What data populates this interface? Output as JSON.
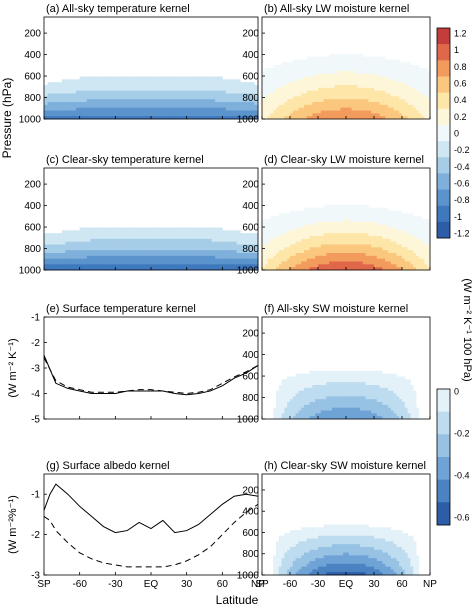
{
  "figure": {
    "y_label_left": "Pressure (hPa)",
    "x_label": "Latitude",
    "right_units": "(W m⁻² K⁻¹ 100 hPa)"
  },
  "chart_data": [
    {
      "id": "a",
      "type": "heatmap",
      "title": "(a)  All-sky temperature kernel",
      "ylim": [
        1000,
        50
      ],
      "yticks": [
        200,
        400,
        600,
        800,
        1000
      ],
      "field": "temp",
      "base": -0.9
    },
    {
      "id": "b",
      "type": "heatmap",
      "title": "(b)  All-sky LW moisture kernel",
      "ylim": [
        1000,
        50
      ],
      "yticks": [
        200,
        400,
        600,
        800,
        1000
      ],
      "field": "lw",
      "base": 1.0
    },
    {
      "id": "c",
      "type": "heatmap",
      "title": "(c)  Clear-sky temperature kernel",
      "ylim": [
        1000,
        50
      ],
      "yticks": [
        200,
        400,
        600,
        800,
        1000
      ],
      "field": "temp",
      "base": -1.0
    },
    {
      "id": "d",
      "type": "heatmap",
      "title": "(d)  Clear-sky LW moisture kernel",
      "ylim": [
        1000,
        50
      ],
      "yticks": [
        200,
        400,
        600,
        800,
        1000
      ],
      "field": "lw",
      "base": 1.2
    },
    {
      "id": "e",
      "type": "line",
      "title": "(e)  Surface temperature kernel",
      "ylabel": "(W m⁻² K⁻¹)",
      "ylim": [
        -5,
        -1
      ],
      "yticks": [
        -1,
        -2,
        -3,
        -4,
        -5
      ],
      "x": [
        -90,
        -80,
        -70,
        -60,
        -50,
        -40,
        -30,
        -20,
        -10,
        0,
        10,
        20,
        30,
        40,
        50,
        60,
        70,
        80,
        90
      ],
      "series": [
        {
          "style": "solid",
          "values": [
            -2.5,
            -3.6,
            -3.8,
            -3.9,
            -4.0,
            -4.0,
            -4.0,
            -3.9,
            -3.9,
            -3.9,
            -3.9,
            -4.0,
            -4.05,
            -4.0,
            -3.9,
            -3.7,
            -3.4,
            -3.2,
            -2.9
          ]
        },
        {
          "style": "dashed",
          "values": [
            -2.6,
            -3.5,
            -3.75,
            -3.85,
            -3.95,
            -3.95,
            -3.95,
            -3.9,
            -3.85,
            -3.85,
            -3.9,
            -3.95,
            -4.0,
            -3.95,
            -3.85,
            -3.6,
            -3.35,
            -3.15,
            -2.9
          ]
        }
      ]
    },
    {
      "id": "f",
      "type": "heatmap",
      "title": "(f)  All-sky SW moisture kernel",
      "ylim": [
        1000,
        50
      ],
      "yticks": [
        200,
        400,
        600,
        800,
        1000
      ],
      "field": "sw",
      "base": -0.4
    },
    {
      "id": "g",
      "type": "line",
      "title": "(g)  Surface albedo kernel",
      "ylabel": "(W m⁻²%⁻¹)",
      "ylim": [
        -3,
        -0.5
      ],
      "yticks": [
        -1,
        -2,
        -3
      ],
      "x": [
        -90,
        -85,
        -80,
        -70,
        -60,
        -50,
        -40,
        -30,
        -20,
        -10,
        0,
        10,
        20,
        30,
        40,
        50,
        60,
        70,
        80,
        90
      ],
      "series": [
        {
          "style": "solid",
          "values": [
            -1.4,
            -1.0,
            -0.75,
            -1.0,
            -1.3,
            -1.55,
            -1.8,
            -1.95,
            -1.9,
            -1.7,
            -1.85,
            -1.65,
            -1.95,
            -1.9,
            -1.75,
            -1.5,
            -1.25,
            -1.05,
            -1.0,
            -1.05
          ]
        },
        {
          "style": "dashed",
          "values": [
            -1.55,
            -1.65,
            -1.9,
            -2.2,
            -2.45,
            -2.6,
            -2.7,
            -2.75,
            -2.8,
            -2.8,
            -2.8,
            -2.8,
            -2.75,
            -2.65,
            -2.5,
            -2.3,
            -2.0,
            -1.7,
            -1.45,
            -1.25
          ]
        }
      ]
    },
    {
      "id": "h",
      "type": "heatmap",
      "title": "(h)  Clear-sky SW moisture kernel",
      "ylim": [
        1000,
        50
      ],
      "yticks": [
        200,
        400,
        600,
        800,
        1000
      ],
      "field": "sw",
      "base": -0.55
    }
  ],
  "x_axis": {
    "ticks": [
      -90,
      -60,
      -30,
      0,
      30,
      60,
      90
    ],
    "labels": [
      "SP",
      "-60",
      "-30",
      "EQ",
      "30",
      "60",
      "NP"
    ],
    "xlim": [
      -90,
      90
    ]
  },
  "colorbar_lw": {
    "levels": [
      -1.2,
      -1,
      -0.8,
      -0.6,
      -0.4,
      -0.2,
      0,
      0.2,
      0.4,
      0.6,
      0.8,
      1,
      1.2
    ],
    "labels": [
      "1.2",
      "1",
      "0.8",
      "0.6",
      "0.4",
      "0.2",
      "0",
      "-0.2",
      "-0.4",
      "-0.6",
      "-0.8",
      "-1",
      "-1.2"
    ],
    "colors": [
      "#2e5da8",
      "#3f78bd",
      "#5b93cc",
      "#7fb0dc",
      "#a6cde8",
      "#cfe6f3",
      "#f0f8fb",
      "#fdf6d8",
      "#fde6a8",
      "#fbc77f",
      "#f29b5c",
      "#e0674a",
      "#c43c3c"
    ]
  },
  "colorbar_sw": {
    "levels": [
      -0.6,
      -0.5,
      -0.4,
      -0.3,
      -0.2,
      -0.1,
      0
    ],
    "labels": [
      "0",
      "-0.2",
      "-0.4",
      "-0.6"
    ],
    "colors": [
      "#2e5da8",
      "#4a82c2",
      "#6fa3d6",
      "#97c2e4",
      "#bedcef",
      "#e3f1f8"
    ]
  }
}
